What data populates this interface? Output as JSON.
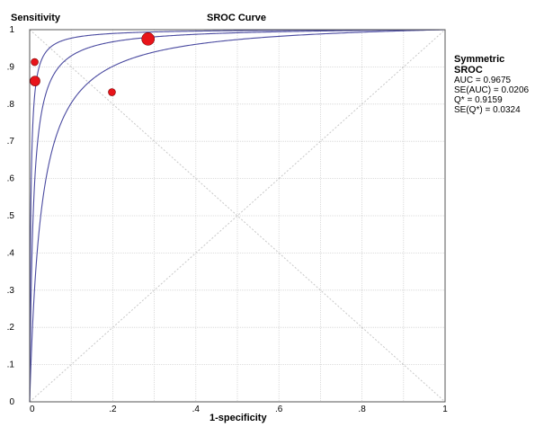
{
  "chart_data": {
    "type": "scatter",
    "title": "SROC Curve",
    "ylabel": "Sensitivity",
    "xlabel": "1-specificity",
    "xlim": [
      0,
      1
    ],
    "ylim": [
      0,
      1
    ],
    "x_ticks": [
      "0",
      ".2",
      ".4",
      ".6",
      ".8",
      "1"
    ],
    "y_ticks": [
      "0",
      ".1",
      ".2",
      ".3",
      ".4",
      ".5",
      ".6",
      ".7",
      ".8",
      ".9",
      "1"
    ],
    "grid": true,
    "points": [
      {
        "x": 0.012,
        "y": 0.913,
        "size": "small"
      },
      {
        "x": 0.013,
        "y": 0.862,
        "size": "medium"
      },
      {
        "x": 0.198,
        "y": 0.832,
        "size": "small"
      },
      {
        "x": 0.285,
        "y": 0.975,
        "size": "large"
      }
    ],
    "point_color": "#e8141a",
    "curve_color": "#4a4aa0",
    "diagonal_color": "#c8c8c8",
    "legend": {
      "heading": "Symmetric SROC",
      "lines": [
        "AUC = 0.9675",
        "SE(AUC) = 0.0206",
        "Q* = 0.9159",
        "SE(Q*) = 0.0324"
      ]
    }
  }
}
